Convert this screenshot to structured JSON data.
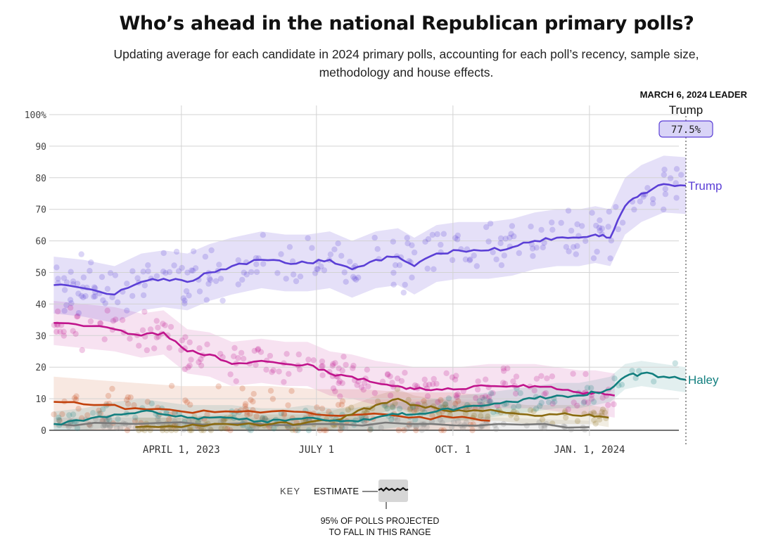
{
  "header": {
    "title": "Who’s ahead in the national Republican primary polls?",
    "subtitle": "Updating average for each candidate in 2024 primary polls, accounting for each poll’s recency, sample size, methodology and house effects."
  },
  "leader_box": {
    "heading": "MARCH 6, 2024 LEADER",
    "name": "Trump",
    "value": "77.5%"
  },
  "key": {
    "label": "KEY",
    "estimate": "ESTIMATE",
    "range_line1": "95% OF POLLS PROJECTED",
    "range_line2": "TO FALL IN THIS RANGE"
  },
  "colors": {
    "trump": "#5b3fd6",
    "desantis": "#c0148c",
    "haley": "#127f7f",
    "ramaswamy": "#8a6a10",
    "pence": "#c2410c",
    "others": "#7a7a7a"
  },
  "chart_data": {
    "type": "line",
    "y_tick_labels": [
      "100%",
      "90",
      "80",
      "70",
      "60",
      "50",
      "40",
      "30",
      "20",
      "10",
      "0"
    ],
    "ylim": [
      0,
      100
    ],
    "x_ticks": [
      {
        "date": "2023-04-01",
        "label": "APRIL 1, 2023"
      },
      {
        "date": "2023-07-01",
        "label": "JULY 1"
      },
      {
        "date": "2023-10-01",
        "label": "OCT. 1"
      },
      {
        "date": "2024-01-01",
        "label": "JAN. 1, 2024"
      }
    ],
    "xlim": [
      "2023-01-01",
      "2024-03-06"
    ],
    "grid": true,
    "series": [
      {
        "key": "trump",
        "name": "Trump",
        "x": [
          "2023-01-05",
          "2023-01-25",
          "2023-02-15",
          "2023-03-05",
          "2023-03-20",
          "2023-04-05",
          "2023-04-20",
          "2023-05-05",
          "2023-05-25",
          "2023-06-10",
          "2023-06-25",
          "2023-07-10",
          "2023-07-25",
          "2023-08-10",
          "2023-08-25",
          "2023-09-05",
          "2023-09-20",
          "2023-10-05",
          "2023-10-25",
          "2023-11-10",
          "2023-11-25",
          "2023-12-10",
          "2023-12-25",
          "2024-01-05",
          "2024-01-15",
          "2024-01-25",
          "2024-02-05",
          "2024-02-20",
          "2024-03-06"
        ],
        "y": [
          46,
          45,
          43,
          47,
          48,
          47,
          50,
          52,
          54,
          53,
          53,
          54,
          51,
          54,
          55,
          52,
          56,
          57,
          57,
          58,
          60,
          61,
          61,
          62,
          61,
          71,
          75,
          78,
          77.5
        ],
        "band": 9,
        "end_label": true
      },
      {
        "key": "desantis",
        "name": "",
        "x": [
          "2023-01-05",
          "2023-01-25",
          "2023-02-15",
          "2023-03-05",
          "2023-03-20",
          "2023-04-05",
          "2023-04-20",
          "2023-05-05",
          "2023-05-25",
          "2023-06-10",
          "2023-06-25",
          "2023-07-10",
          "2023-07-25",
          "2023-08-10",
          "2023-08-25",
          "2023-09-05",
          "2023-09-20",
          "2023-10-05",
          "2023-10-25",
          "2023-11-10",
          "2023-11-25",
          "2023-12-10",
          "2023-12-25",
          "2024-01-05",
          "2024-01-18"
        ],
        "y": [
          34,
          33,
          32,
          30,
          31,
          25,
          24,
          21,
          22,
          21,
          21,
          18,
          17,
          15,
          14,
          13,
          13,
          13,
          14,
          14,
          14,
          13,
          12,
          12,
          11
        ],
        "band": 7
      },
      {
        "key": "haley",
        "name": "Haley",
        "x": [
          "2023-01-05",
          "2023-01-25",
          "2023-02-15",
          "2023-03-05",
          "2023-03-20",
          "2023-04-05",
          "2023-04-20",
          "2023-05-05",
          "2023-05-25",
          "2023-06-10",
          "2023-06-25",
          "2023-07-10",
          "2023-07-25",
          "2023-08-10",
          "2023-08-25",
          "2023-09-05",
          "2023-09-20",
          "2023-10-05",
          "2023-10-25",
          "2023-11-10",
          "2023-11-25",
          "2023-12-10",
          "2023-12-25",
          "2024-01-05",
          "2024-01-15",
          "2024-01-25",
          "2024-02-05",
          "2024-02-20",
          "2024-03-06"
        ],
        "y": [
          2,
          3,
          5,
          6,
          5,
          4,
          4,
          4,
          3,
          3,
          4,
          3,
          3,
          4,
          5,
          5,
          6,
          7,
          8,
          9,
          10,
          11,
          11,
          12,
          13,
          17,
          18,
          17,
          16
        ],
        "band": 4,
        "end_label": true
      },
      {
        "key": "ramaswamy",
        "name": "",
        "x": [
          "2023-03-01",
          "2023-04-01",
          "2023-05-01",
          "2023-06-01",
          "2023-06-20",
          "2023-07-10",
          "2023-07-25",
          "2023-08-10",
          "2023-08-25",
          "2023-09-05",
          "2023-09-20",
          "2023-10-10",
          "2023-11-01",
          "2023-11-20",
          "2023-12-10",
          "2024-01-01",
          "2024-01-14"
        ],
        "y": [
          1,
          1,
          2,
          2,
          2,
          3,
          5,
          8,
          10,
          8,
          7,
          6,
          6,
          5,
          5,
          5,
          4
        ],
        "band": 3
      },
      {
        "key": "pence",
        "name": "",
        "x": [
          "2023-01-05",
          "2023-02-01",
          "2023-03-01",
          "2023-04-01",
          "2023-05-01",
          "2023-06-01",
          "2023-07-01",
          "2023-08-01",
          "2023-09-01",
          "2023-10-01",
          "2023-10-26"
        ],
        "y": [
          9,
          8,
          7,
          6,
          6,
          6,
          5,
          5,
          4,
          4,
          3
        ],
        "band": 8
      },
      {
        "key": "others",
        "name": "",
        "x": [
          "2023-01-05",
          "2023-03-01",
          "2023-05-01",
          "2023-07-01",
          "2023-09-01",
          "2023-11-01",
          "2024-01-01"
        ],
        "y": [
          2,
          2,
          2,
          2,
          2,
          2,
          1
        ],
        "band": 2
      }
    ]
  }
}
